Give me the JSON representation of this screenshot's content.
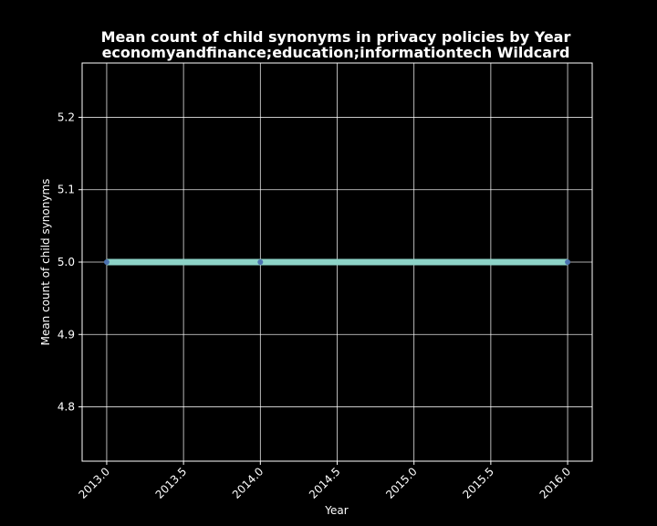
{
  "chart_data": {
    "type": "line",
    "title": "Mean count of child synonyms in privacy policies by Year",
    "subtitle": "economyandfinance;education;informationtech Wildcard",
    "xlabel": "Year",
    "ylabel": "Mean count of child synonyms",
    "xlim": [
      2012.84,
      2016.16
    ],
    "ylim": [
      4.725,
      5.275
    ],
    "xticks": [
      2013.0,
      2013.5,
      2014.0,
      2014.5,
      2015.0,
      2015.5,
      2016.0
    ],
    "xtick_labels": [
      "2013.0",
      "2013.5",
      "2014.0",
      "2014.5",
      "2015.0",
      "2015.5",
      "2016.0"
    ],
    "yticks": [
      4.8,
      4.9,
      5.0,
      5.1,
      5.2
    ],
    "ytick_labels": [
      "4.8",
      "4.9",
      "5.0",
      "5.1",
      "5.2"
    ],
    "grid": true,
    "background": "#000000",
    "series": [
      {
        "x": [
          2013,
          2014,
          2016
        ],
        "y": [
          5.0,
          5.0,
          5.0
        ],
        "line_color": "#8dd3c7",
        "marker_color": "#4c72b0"
      }
    ]
  }
}
